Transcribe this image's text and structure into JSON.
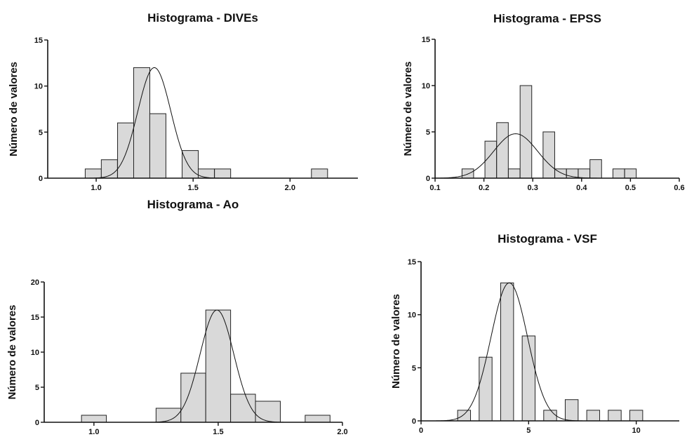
{
  "chart_data": [
    {
      "type": "bar",
      "title": "Histograma - DIVEs",
      "xlabel": "",
      "ylabel": "Número de valores",
      "xlim": [
        0.75,
        2.35
      ],
      "ylim": [
        0,
        15
      ],
      "xticks": [
        1.0,
        1.5,
        2.0
      ],
      "xtick_labels": [
        "1.0",
        "1.5",
        "2.0"
      ],
      "yticks": [
        0,
        5,
        10,
        15
      ],
      "ytick_labels": [
        "0",
        "5",
        "10",
        "15"
      ],
      "bin_width": 0.0833,
      "bins": [
        {
          "x": 0.985,
          "count": 1
        },
        {
          "x": 1.068,
          "count": 2
        },
        {
          "x": 1.152,
          "count": 6
        },
        {
          "x": 1.235,
          "count": 12
        },
        {
          "x": 1.318,
          "count": 7
        },
        {
          "x": 1.485,
          "count": 3
        },
        {
          "x": 1.568,
          "count": 1
        },
        {
          "x": 1.652,
          "count": 1
        },
        {
          "x": 2.152,
          "count": 1
        }
      ],
      "fit": {
        "type": "gaussian",
        "mean": 1.3,
        "sd": 0.085,
        "peak": 12
      },
      "grid": false
    },
    {
      "type": "bar",
      "title": "Histograma - EPSS",
      "xlabel": "",
      "ylabel": "Número de valores",
      "xlim": [
        0.1,
        0.6
      ],
      "ylim": [
        0,
        15
      ],
      "xticks": [
        0.1,
        0.2,
        0.3,
        0.4,
        0.5,
        0.6
      ],
      "xtick_labels": [
        "0.1",
        "0.2",
        "0.3",
        "0.4",
        "0.5",
        "0.6"
      ],
      "yticks": [
        0,
        5,
        10,
        15
      ],
      "ytick_labels": [
        "0",
        "5",
        "10",
        "15"
      ],
      "bin_width": 0.0238,
      "bins": [
        {
          "x": 0.167,
          "count": 1
        },
        {
          "x": 0.214,
          "count": 4
        },
        {
          "x": 0.238,
          "count": 6
        },
        {
          "x": 0.262,
          "count": 1
        },
        {
          "x": 0.286,
          "count": 10
        },
        {
          "x": 0.333,
          "count": 5
        },
        {
          "x": 0.357,
          "count": 1
        },
        {
          "x": 0.381,
          "count": 1
        },
        {
          "x": 0.405,
          "count": 1
        },
        {
          "x": 0.429,
          "count": 2
        },
        {
          "x": 0.476,
          "count": 1
        },
        {
          "x": 0.5,
          "count": 1
        }
      ],
      "fit": {
        "type": "gaussian",
        "mean": 0.265,
        "sd": 0.045,
        "peak": 4.8
      },
      "grid": false
    },
    {
      "type": "bar",
      "title": "Histograma - Ao",
      "xlabel": "",
      "ylabel": "Número de valores",
      "xlim": [
        0.8,
        2.0
      ],
      "ylim": [
        0,
        20
      ],
      "xticks": [
        1.0,
        1.5,
        2.0
      ],
      "xtick_labels": [
        "1.0",
        "1.5",
        "2.0"
      ],
      "yticks": [
        0,
        5,
        10,
        15,
        20
      ],
      "ytick_labels": [
        "0",
        "5",
        "10",
        "15",
        "20"
      ],
      "bin_width": 0.1,
      "bins": [
        {
          "x": 1.0,
          "count": 1
        },
        {
          "x": 1.3,
          "count": 2
        },
        {
          "x": 1.4,
          "count": 7
        },
        {
          "x": 1.5,
          "count": 16
        },
        {
          "x": 1.6,
          "count": 4
        },
        {
          "x": 1.7,
          "count": 3
        },
        {
          "x": 1.9,
          "count": 1
        }
      ],
      "fit": {
        "type": "gaussian",
        "mean": 1.495,
        "sd": 0.068,
        "peak": 16
      },
      "grid": false
    },
    {
      "type": "bar",
      "title": "Histograma - VSF",
      "xlabel": "",
      "ylabel": "Número de valores",
      "xlim": [
        0,
        12
      ],
      "ylim": [
        0,
        15
      ],
      "xticks": [
        0,
        5,
        10
      ],
      "xtick_labels": [
        "0",
        "5",
        "10"
      ],
      "yticks": [
        0,
        5,
        10,
        15
      ],
      "ytick_labels": [
        "0",
        "5",
        "10",
        "15"
      ],
      "bin_width": 0.6,
      "bins": [
        {
          "x": 2,
          "count": 1
        },
        {
          "x": 3,
          "count": 6
        },
        {
          "x": 4,
          "count": 13
        },
        {
          "x": 5,
          "count": 8
        },
        {
          "x": 6,
          "count": 1
        },
        {
          "x": 7,
          "count": 2
        },
        {
          "x": 8,
          "count": 1
        },
        {
          "x": 9,
          "count": 1
        },
        {
          "x": 10,
          "count": 1
        }
      ],
      "fit": {
        "type": "gaussian",
        "mean": 4.1,
        "sd": 0.85,
        "peak": 13
      },
      "grid": false
    }
  ]
}
